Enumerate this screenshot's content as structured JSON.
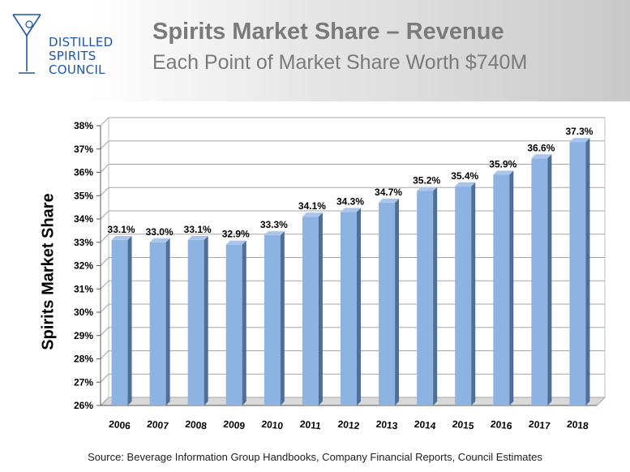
{
  "header": {
    "logo_lines": [
      "DISTILLED",
      "SPIRITS",
      "COUNCIL"
    ],
    "title": "Spirits Market Share – Revenue",
    "subtitle": "Each Point of Market Share Worth $740M"
  },
  "footer": {
    "source": "Source: Beverage Information Group Handbooks, Company Financial Reports, Council Estimates"
  },
  "colors": {
    "bar_front": "#8db3e2",
    "bar_side": "#4f6f96",
    "bar_top": "#a9c6ea",
    "title_gray": "#7a7a7a",
    "logo_blue": "#1f57a6"
  },
  "chart_data": {
    "type": "bar",
    "title": "Spirits Market Share – Revenue",
    "subtitle": "Each Point of Market Share Worth $740M",
    "xlabel": "",
    "ylabel": "Spirits Market Share",
    "categories": [
      "2006",
      "2007",
      "2008",
      "2009",
      "2010",
      "2011",
      "2012",
      "2013",
      "2014",
      "2015",
      "2016",
      "2017",
      "2018"
    ],
    "values": [
      33.1,
      33.0,
      33.1,
      32.9,
      33.3,
      34.1,
      34.3,
      34.7,
      35.2,
      35.4,
      35.9,
      36.6,
      37.3
    ],
    "data_labels": [
      "33.1%",
      "33.0%",
      "33.1%",
      "32.9%",
      "33.3%",
      "34.1%",
      "34.3%",
      "34.7%",
      "35.2%",
      "35.4%",
      "35.9%",
      "36.6%",
      "37.3%"
    ],
    "ylim": [
      26,
      38
    ],
    "yticks": [
      "26%",
      "27%",
      "28%",
      "29%",
      "30%",
      "31%",
      "32%",
      "33%",
      "34%",
      "35%",
      "36%",
      "37%",
      "38%"
    ],
    "grid": true,
    "legend": "none",
    "style": "3d-columns"
  }
}
